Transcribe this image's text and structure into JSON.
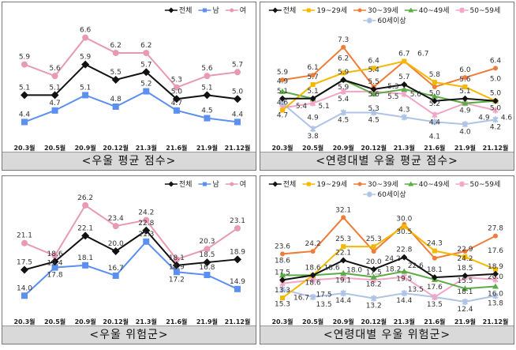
{
  "chart_data": [
    {
      "type": "line",
      "title": "<우울 평균 점수>",
      "categories": [
        "20.3월",
        "20.5월",
        "20.9월",
        "20.12월",
        "21.3월",
        "21.6월",
        "21.9월",
        "21.12월"
      ],
      "ylim": [
        4.1,
        6.9
      ],
      "grid": false,
      "legend": "top-right",
      "series": [
        {
          "name": "전체",
          "color": "#111111",
          "marker": "diamond",
          "values": [
            5.1,
            5.1,
            5.9,
            5.5,
            5.7,
            5.0,
            5.1,
            5.0
          ]
        },
        {
          "name": "남",
          "color": "#5b8ff0",
          "marker": "square",
          "values": [
            4.4,
            4.7,
            5.1,
            4.8,
            5.2,
            4.7,
            4.5,
            4.4
          ]
        },
        {
          "name": "여",
          "color": "#e899b4",
          "marker": "circle",
          "values": [
            5.9,
            5.6,
            6.6,
            6.2,
            6.2,
            5.3,
            5.6,
            5.7
          ]
        }
      ]
    },
    {
      "type": "line",
      "title": "<연령대별 우울 평균 점수>",
      "categories": [
        "20.3월",
        "20.5월",
        "20.9월",
        "20.12월",
        "21.3월",
        "21.6월",
        "21.9월",
        "21.12월"
      ],
      "ylim": [
        3.4,
        7.8
      ],
      "grid": false,
      "legend": "top",
      "series": [
        {
          "name": "전체",
          "color": "#111111",
          "marker": "diamond",
          "values": [
            5.1,
            5.1,
            5.9,
            5.5,
            5.7,
            5.0,
            5.1,
            5.0
          ]
        },
        {
          "name": "19~29세",
          "color": "#f5b800",
          "marker": "square",
          "values": [
            4.6,
            5.7,
            6.2,
            6.4,
            6.7,
            5.8,
            5.6,
            5.0
          ]
        },
        {
          "name": "30~39세",
          "color": "#ef7d3a",
          "marker": "circle",
          "values": [
            5.9,
            6.1,
            7.3,
            5.6,
            6.7,
            5.6,
            6.0,
            6.4
          ]
        },
        {
          "name": "40~49세",
          "color": "#5aac44",
          "marker": "triangle",
          "values": [
            5.4,
            5.1,
            5.9,
            5.3,
            5.5,
            5.2,
            4.9,
            5.0
          ]
        },
        {
          "name": "50~59세",
          "color": "#f2a6c6",
          "marker": "x",
          "values": [
            4.7,
            4.9,
            5.4,
            5.4,
            5.3,
            4.4,
            4.9,
            4.6
          ]
        },
        {
          "name": "60세이상",
          "color": "#aec3e6",
          "marker": "x",
          "values": [
            4.9,
            3.8,
            4.5,
            4.5,
            4.3,
            4.1,
            4.0,
            4.2
          ]
        }
      ]
    },
    {
      "type": "line",
      "title": "<우울 위험군>",
      "categories": [
        "20.3월",
        "20.5월",
        "20.9월",
        "20.12월",
        "21.3월",
        "21.6월",
        "21.9월",
        "21.12월"
      ],
      "ylim": [
        12,
        28
      ],
      "grid": false,
      "legend": "top-right",
      "series": [
        {
          "name": "전체",
          "color": "#111111",
          "marker": "diamond",
          "values": [
            17.5,
            18.6,
            22.1,
            20.0,
            22.8,
            18.1,
            18.5,
            18.9
          ]
        },
        {
          "name": "남",
          "color": "#5b8ff0",
          "marker": "square",
          "values": [
            14.0,
            17.8,
            18.1,
            16.7,
            21.3,
            17.2,
            16.8,
            14.9
          ]
        },
        {
          "name": "여",
          "color": "#e899b4",
          "marker": "circle",
          "values": [
            21.1,
            19.4,
            26.2,
            23.4,
            24.2,
            18.9,
            20.3,
            23.1
          ]
        }
      ]
    },
    {
      "type": "line",
      "title": "<연령대별 우울 위험군>",
      "categories": [
        "20.3월",
        "20.5월",
        "20.9월",
        "20.12월",
        "21.3월",
        "21.6월",
        "21.9월",
        "21.12월"
      ],
      "ylim": [
        10,
        34
      ],
      "grid": false,
      "legend": "top",
      "series": [
        {
          "name": "전체",
          "color": "#111111",
          "marker": "diamond",
          "values": [
            17.5,
            18.6,
            22.1,
            20.0,
            22.8,
            18.1,
            18.5,
            18.9
          ]
        },
        {
          "name": "19~29세",
          "color": "#f5b800",
          "marker": "square",
          "values": [
            13.3,
            18.6,
            25.3,
            25.3,
            30.0,
            24.3,
            22.9,
            20.0
          ]
        },
        {
          "name": "30~39세",
          "color": "#ef7d3a",
          "marker": "circle",
          "values": [
            23.6,
            24.2,
            32.1,
            24.2,
            30.5,
            22.6,
            24.2,
            27.8
          ]
        },
        {
          "name": "40~49세",
          "color": "#5aac44",
          "marker": "triangle",
          "values": [
            18.6,
            18.6,
            19.1,
            18.2,
            19.5,
            17.6,
            15.5,
            16.0
          ]
        },
        {
          "name": "50~59세",
          "color": "#f2a6c6",
          "marker": "x",
          "values": [
            16.7,
            17.5,
            18.0,
            17.5,
            18.2,
            13.5,
            18.1,
            17.6
          ]
        },
        {
          "name": "60세이상",
          "color": "#aec3e6",
          "marker": "x",
          "values": [
            15.3,
            13.5,
            14.4,
            13.2,
            14.4,
            13.5,
            12.4,
            13.8
          ]
        }
      ]
    }
  ]
}
